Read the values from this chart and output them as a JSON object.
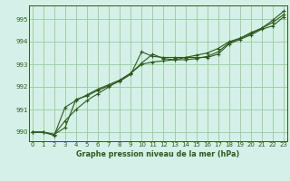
{
  "title": "Graphe pression niveau de la mer (hPa)",
  "background_color": "#d4f0e8",
  "plot_bg_color": "#d4f0e8",
  "grid_color": "#99cc99",
  "line_color": "#2d5a1b",
  "spine_color": "#2d5a1b",
  "x_ticks": [
    0,
    1,
    2,
    3,
    4,
    5,
    6,
    7,
    8,
    9,
    10,
    11,
    12,
    13,
    14,
    15,
    16,
    17,
    18,
    19,
    20,
    21,
    22,
    23
  ],
  "y_ticks": [
    990,
    991,
    992,
    993,
    994,
    995
  ],
  "ylim": [
    989.6,
    995.6
  ],
  "xlim": [
    -0.3,
    23.3
  ],
  "series1": [
    990.0,
    990.0,
    989.9,
    990.2,
    991.45,
    991.6,
    991.85,
    992.05,
    992.25,
    992.55,
    993.55,
    993.35,
    993.3,
    993.3,
    993.3,
    993.3,
    993.3,
    993.45,
    993.9,
    994.1,
    994.3,
    994.55,
    994.7,
    995.1
  ],
  "series2": [
    990.0,
    990.0,
    989.85,
    991.1,
    991.4,
    991.65,
    991.9,
    992.1,
    992.3,
    992.6,
    993.05,
    993.45,
    993.25,
    993.2,
    993.2,
    993.25,
    993.35,
    993.55,
    993.95,
    994.15,
    994.35,
    994.6,
    994.95,
    995.35
  ],
  "series3": [
    990.0,
    990.0,
    989.9,
    990.5,
    991.0,
    991.4,
    991.7,
    992.0,
    992.3,
    992.6,
    993.0,
    993.1,
    993.15,
    993.2,
    993.3,
    993.4,
    993.5,
    993.7,
    994.0,
    994.15,
    994.4,
    994.6,
    994.85,
    995.2
  ],
  "tick_fontsize": 5.0,
  "xlabel_fontsize": 5.8,
  "xlabel_fontweight": "bold"
}
